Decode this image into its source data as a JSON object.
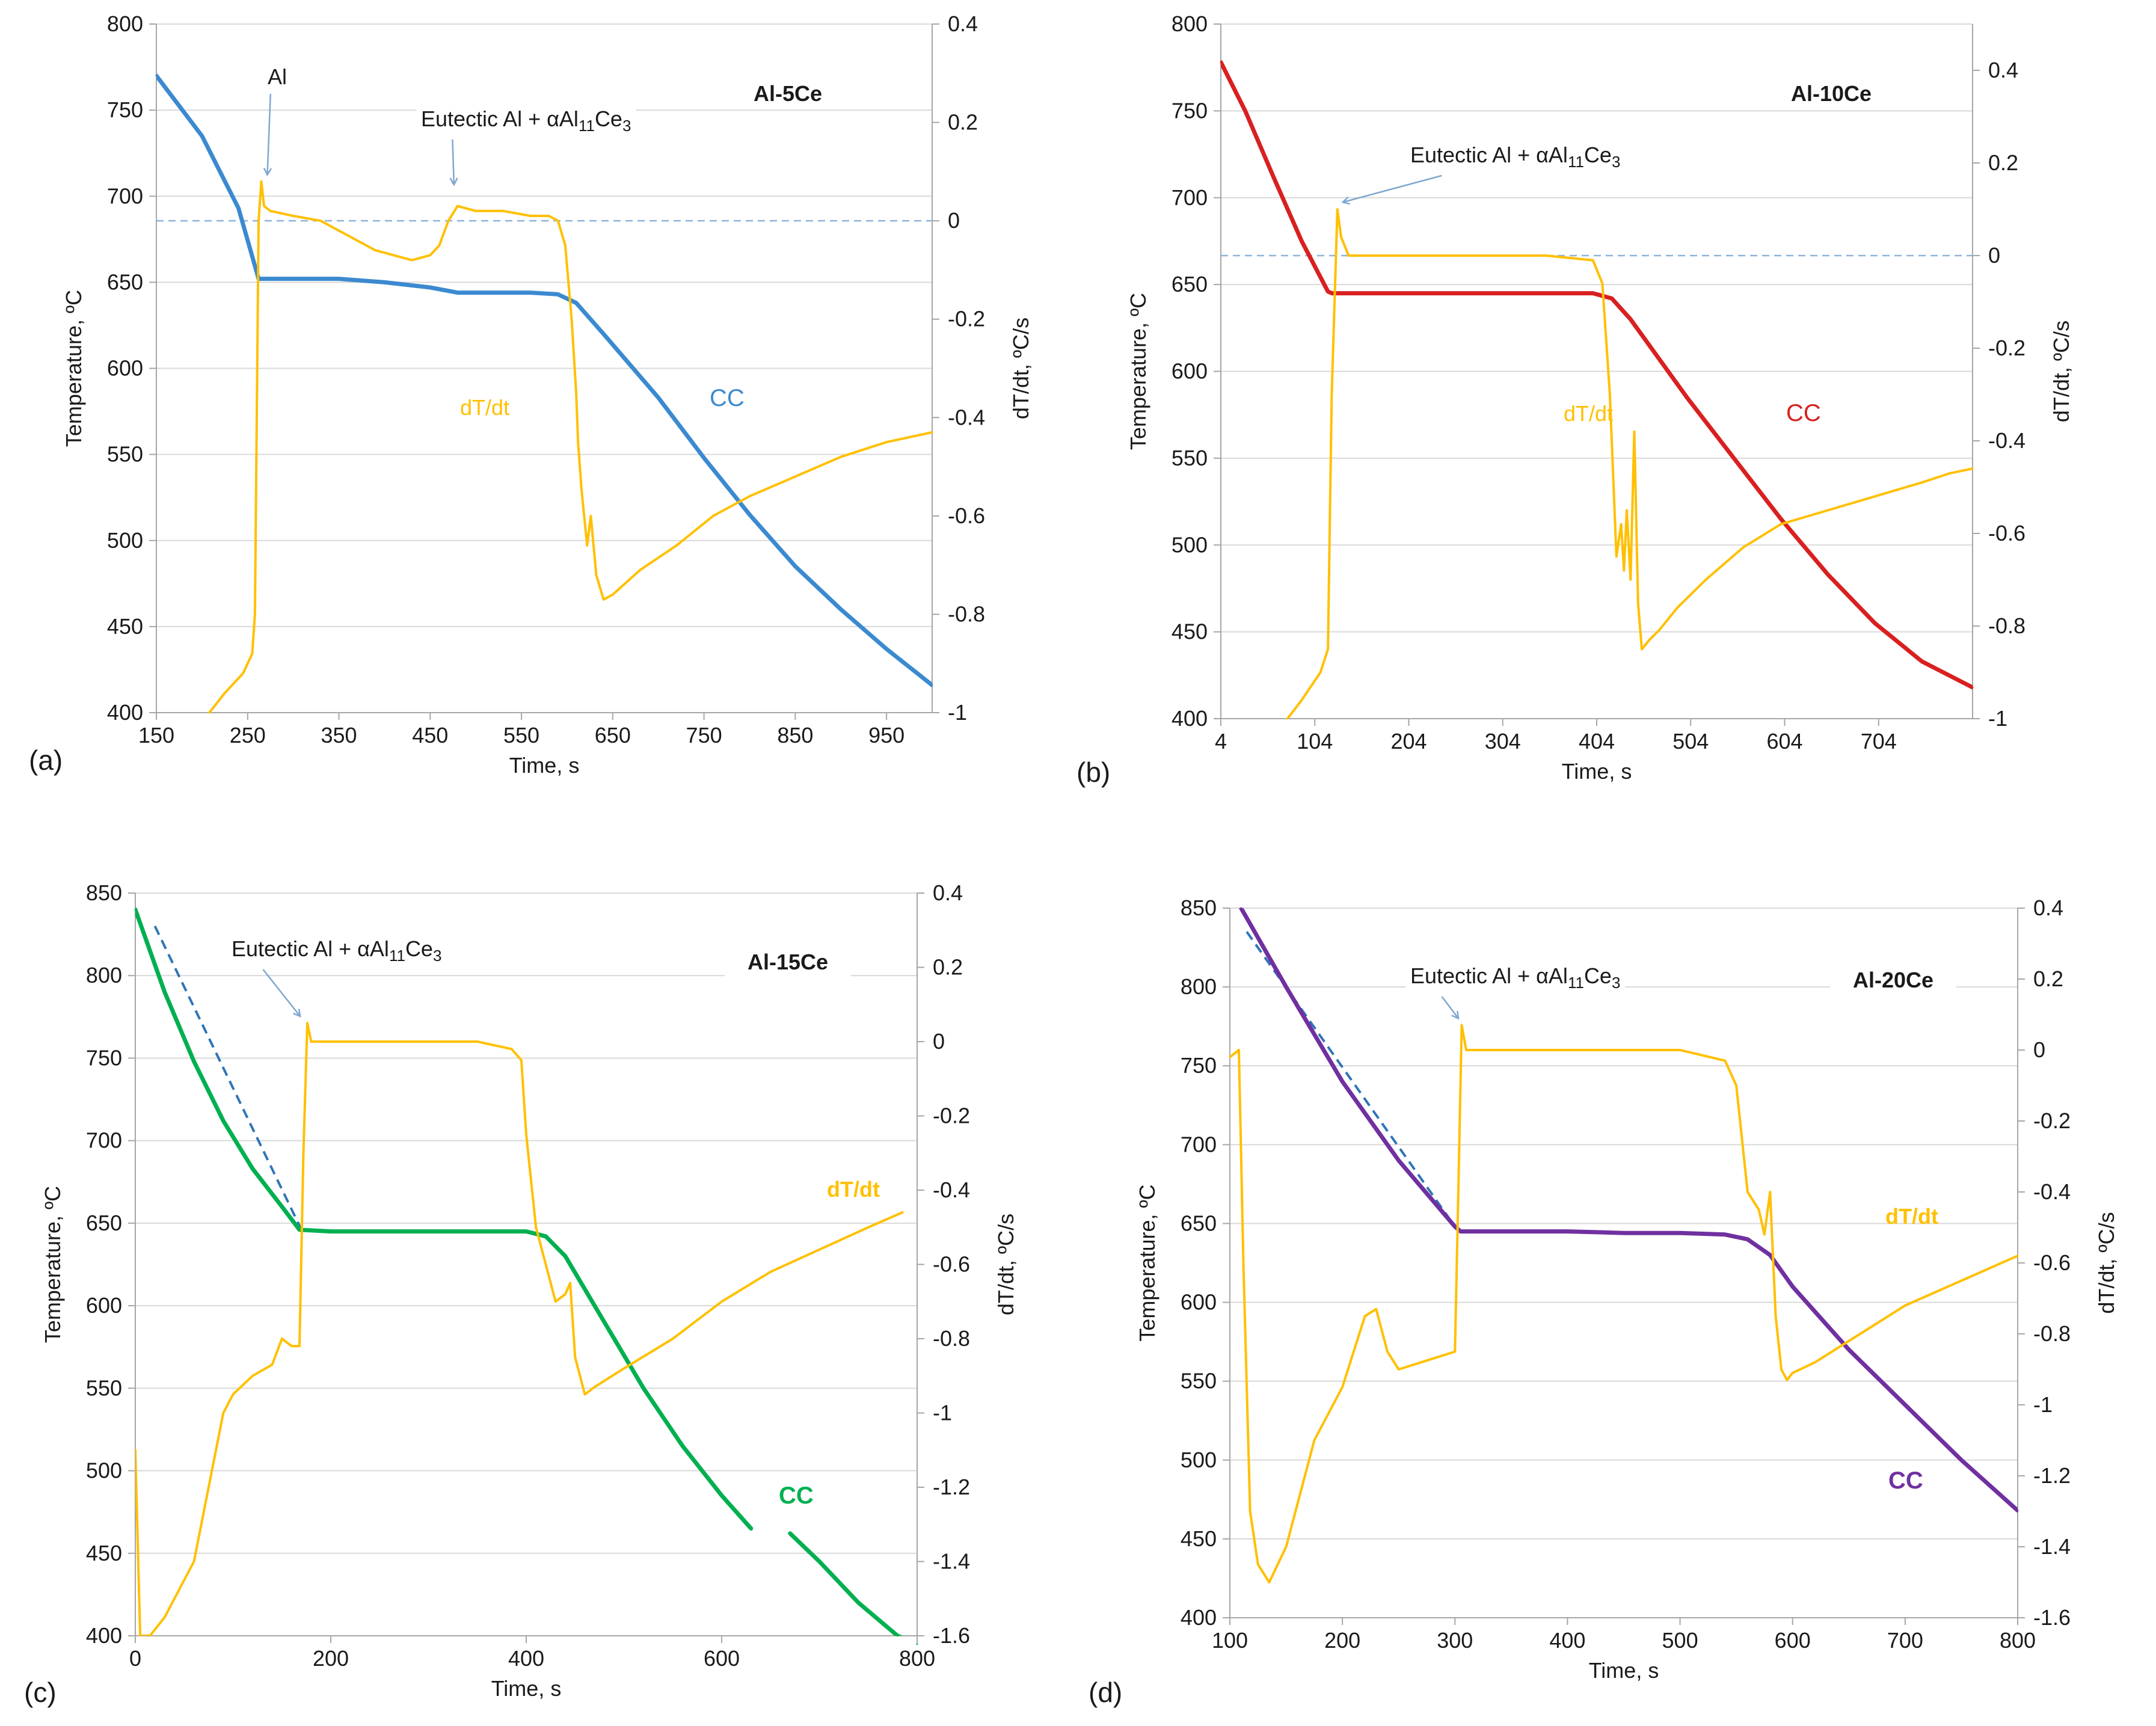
{
  "colors": {
    "dTdt": "#FFC000",
    "grid": "#D9D9D9",
    "axis": "#A6A6A6",
    "text": "#1A1A1A",
    "ref_line": "#8EB4D9",
    "arrow": "#7FA7CF",
    "tangent": "#2E75B6"
  },
  "chart_data": [
    {
      "type": "line",
      "panel_label": "(a)",
      "alloy_label": "Al-5Ce",
      "xlabel": "Time, s",
      "ylabel": "Temperature, ºC",
      "y2label": "dT/dt, ºC/s",
      "xlim": [
        150,
        1000
      ],
      "x_ticks": [
        "150",
        "250",
        "350",
        "450",
        "550",
        "650",
        "750",
        "850",
        "950"
      ],
      "ylim": [
        400,
        800
      ],
      "y_ticks": [
        "400",
        "450",
        "500",
        "550",
        "600",
        "650",
        "700",
        "750",
        "800"
      ],
      "y2lim": [
        -1,
        0.4
      ],
      "y2_ticks": [
        "-1",
        "-0.8",
        "-0.6",
        "-0.4",
        "-0.2",
        "0",
        "0.2",
        "0.4"
      ],
      "grid": "horizontal",
      "cc_color": "#3B8AD0",
      "series": [
        {
          "name": "CC",
          "axis": "left",
          "x": [
            150,
            200,
            240,
            262,
            300,
            350,
            400,
            450,
            480,
            520,
            560,
            590,
            610,
            640,
            700,
            750,
            800,
            850,
            900,
            950,
            1000
          ],
          "y": [
            770,
            735,
            693,
            652,
            652,
            652,
            650,
            647,
            644,
            644,
            644,
            643,
            638,
            620,
            583,
            548,
            515,
            485,
            460,
            437,
            416
          ]
        },
        {
          "name": "dT/dt",
          "axis": "right",
          "x": [
            208,
            225,
            245,
            255,
            258,
            262,
            265,
            268,
            275,
            300,
            330,
            350,
            370,
            390,
            410,
            430,
            450,
            460,
            470,
            480,
            500,
            530,
            560,
            580,
            590,
            598,
            605,
            610,
            612,
            616,
            622,
            626,
            632,
            640,
            650,
            680,
            720,
            760,
            800,
            850,
            900,
            950,
            1000
          ],
          "y": [
            -1,
            -0.96,
            -0.92,
            -0.88,
            -0.8,
            0,
            0.08,
            0.03,
            0.02,
            0.01,
            0.0,
            -0.02,
            -0.04,
            -0.06,
            -0.07,
            -0.08,
            -0.07,
            -0.05,
            0.0,
            0.03,
            0.02,
            0.02,
            0.01,
            0.01,
            0.0,
            -0.05,
            -0.2,
            -0.35,
            -0.45,
            -0.55,
            -0.66,
            -0.6,
            -0.72,
            -0.77,
            -0.76,
            -0.71,
            -0.66,
            -0.6,
            -0.56,
            -0.52,
            -0.48,
            -0.45,
            -0.43
          ]
        }
      ],
      "reference_line": {
        "axis": "right",
        "y": 0
      },
      "annotations": [
        {
          "text": "Al",
          "target": [
            265,
            0.08
          ]
        },
        {
          "text": "Eutectic Al + αAl",
          "sub": "11",
          "text2": "Ce",
          "sub2": "3",
          "target": [
            480,
            0.06
          ]
        },
        {
          "text": "dT/dt",
          "at": [
            395,
            0.0
          ]
        },
        {
          "text": "CC",
          "at": [
            760,
            0.0
          ]
        }
      ]
    },
    {
      "type": "line",
      "panel_label": "(b)",
      "alloy_label": "Al-10Ce",
      "xlabel": "Time, s",
      "ylabel": "Temperature, ºC",
      "y2label": "dT/dt, ºC/s",
      "xlim": [
        4,
        804
      ],
      "x_ticks": [
        "4",
        "104",
        "204",
        "304",
        "404",
        "504",
        "604",
        "704"
      ],
      "ylim": [
        400,
        800
      ],
      "y_ticks": [
        "400",
        "450",
        "500",
        "550",
        "600",
        "650",
        "700",
        "750",
        "800"
      ],
      "y2lim": [
        -1,
        0.5
      ],
      "y2_ticks": [
        "-1",
        "-0.8",
        "-0.6",
        "-0.4",
        "-0.2",
        "0",
        "0.2",
        "0.4"
      ],
      "grid": "horizontal",
      "cc_color": "#D92020",
      "series": [
        {
          "name": "CC",
          "axis": "left",
          "x": [
            4,
            30,
            60,
            90,
            118,
            122,
            150,
            200,
            300,
            400,
            420,
            440,
            460,
            500,
            550,
            600,
            650,
            700,
            750,
            804
          ],
          "y": [
            778,
            750,
            712,
            675,
            646,
            645,
            645,
            645,
            645,
            645,
            642,
            630,
            615,
            585,
            550,
            515,
            483,
            455,
            433,
            418
          ]
        },
        {
          "name": "dT/dt",
          "axis": "right",
          "x": [
            75,
            90,
            110,
            118,
            122,
            128,
            132,
            140,
            160,
            200,
            250,
            300,
            350,
            400,
            410,
            418,
            425,
            430,
            433,
            436,
            440,
            444,
            448,
            452,
            456,
            460,
            465,
            470,
            490,
            520,
            560,
            600,
            650,
            700,
            750,
            780,
            804
          ],
          "y": [
            -1,
            -0.96,
            -0.9,
            -0.85,
            -0.3,
            0.1,
            0.04,
            0.0,
            0.0,
            0.0,
            0.0,
            0.0,
            0.0,
            -0.01,
            -0.06,
            -0.3,
            -0.65,
            -0.58,
            -0.68,
            -0.55,
            -0.7,
            -0.38,
            -0.75,
            -0.85,
            -0.84,
            -0.83,
            -0.82,
            -0.81,
            -0.76,
            -0.7,
            -0.63,
            -0.58,
            -0.55,
            -0.52,
            -0.49,
            -0.47,
            -0.46
          ]
        }
      ],
      "reference_line": {
        "axis": "right",
        "y": 0
      },
      "annotations": [
        {
          "text": "Eutectic Al + αAl",
          "sub": "11",
          "text2": "Ce",
          "sub2": "3",
          "target": [
            128,
            0.1
          ]
        },
        {
          "text": "dT/dt",
          "at": [
            340,
            0.0
          ]
        },
        {
          "text": "CC",
          "at": [
            585,
            0.0
          ]
        }
      ]
    },
    {
      "type": "line",
      "panel_label": "(c)",
      "alloy_label": "Al-15Ce",
      "xlabel": "Time, s",
      "ylabel": "Temperature, ºC",
      "y2label": "dT/dt, ºC/s",
      "xlim": [
        0,
        800
      ],
      "x_ticks": [
        "0",
        "200",
        "400",
        "600",
        "800"
      ],
      "ylim": [
        400,
        850
      ],
      "y_ticks": [
        "400",
        "450",
        "500",
        "550",
        "600",
        "650",
        "700",
        "750",
        "800",
        "850"
      ],
      "y2lim": [
        -1.6,
        0.4
      ],
      "y2_ticks": [
        "-1.6",
        "-1.4",
        "-1.2",
        "-1",
        "-0.8",
        "-0.6",
        "-0.4",
        "-0.2",
        "0",
        "0.2",
        "0.4"
      ],
      "grid": "horizontal",
      "cc_color": "#00B050",
      "series": [
        {
          "name": "CC",
          "axis": "left",
          "x": [
            0,
            30,
            60,
            90,
            120,
            150,
            168,
            200,
            300,
            400,
            420,
            440,
            480,
            520,
            560,
            600,
            630
          ],
          "y": [
            840,
            790,
            748,
            712,
            683,
            660,
            646,
            645,
            645,
            645,
            642,
            630,
            590,
            550,
            515,
            485,
            465
          ]
        },
        {
          "name": "CC",
          "axis": "left",
          "break_before": true,
          "x": [
            670,
            700,
            740,
            780,
            800
          ],
          "y": [
            462,
            445,
            420,
            400,
            395
          ]
        },
        {
          "name": "dT/dt",
          "axis": "right",
          "x": [
            0,
            5,
            15,
            30,
            60,
            90,
            100,
            120,
            140,
            150,
            160,
            168,
            172,
            176,
            180,
            200,
            250,
            300,
            350,
            385,
            395,
            400,
            410,
            420,
            430,
            440,
            445,
            450,
            460,
            470,
            500,
            550,
            600,
            650,
            700,
            750,
            785
          ],
          "y": [
            -1.1,
            -1.6,
            -1.6,
            -1.55,
            -1.4,
            -1.0,
            -0.95,
            -0.9,
            -0.87,
            -0.8,
            -0.82,
            -0.82,
            -0.3,
            0.05,
            0.0,
            0.0,
            0.0,
            0.0,
            0.0,
            -0.02,
            -0.05,
            -0.25,
            -0.5,
            -0.6,
            -0.7,
            -0.68,
            -0.65,
            -0.85,
            -0.95,
            -0.93,
            -0.88,
            -0.8,
            -0.7,
            -0.62,
            -0.56,
            -0.5,
            -0.46
          ]
        }
      ],
      "tangent_line": {
        "axis": "left",
        "x": [
          20,
          170
        ],
        "y": [
          830,
          646
        ]
      },
      "annotations": [
        {
          "text": "Eutectic Al + αAl",
          "sub": "11",
          "text2": "Ce",
          "sub2": "3",
          "target": [
            172,
            0.05
          ]
        },
        {
          "text": "dT/dt",
          "at": [
            720,
            0.0
          ]
        },
        {
          "text": "CC",
          "at": [
            660,
            0.0
          ]
        }
      ]
    },
    {
      "type": "line",
      "panel_label": "(d)",
      "alloy_label": "Al-20Ce",
      "xlabel": "Time, s",
      "ylabel": "Temperature, ºC",
      "y2label": "dT/dt, ºC/s",
      "xlim": [
        100,
        800
      ],
      "x_ticks": [
        "100",
        "200",
        "300",
        "400",
        "500",
        "600",
        "700",
        "800"
      ],
      "ylim": [
        400,
        850
      ],
      "y_ticks": [
        "400",
        "450",
        "500",
        "550",
        "600",
        "650",
        "700",
        "750",
        "800",
        "850"
      ],
      "y2lim": [
        -1.6,
        0.4
      ],
      "y2_ticks": [
        "-1.6",
        "-1.4",
        "-1.2",
        "-1",
        "-0.8",
        "-0.6",
        "-0.4",
        "-0.2",
        "0",
        "0.2",
        "0.4"
      ],
      "grid": "horizontal",
      "cc_color": "#7030A0",
      "series": [
        {
          "name": "CC",
          "axis": "left",
          "x": [
            110,
            150,
            200,
            250,
            300,
            305,
            350,
            400,
            450,
            500,
            540,
            560,
            580,
            600,
            650,
            700,
            750,
            800
          ],
          "y": [
            850,
            800,
            740,
            690,
            648,
            645,
            645,
            645,
            644,
            644,
            643,
            640,
            630,
            610,
            570,
            535,
            500,
            468
          ]
        },
        {
          "name": "dT/dt",
          "axis": "right",
          "x": [
            100,
            108,
            112,
            118,
            125,
            135,
            150,
            175,
            200,
            220,
            230,
            240,
            250,
            280,
            300,
            303,
            306,
            310,
            320,
            350,
            400,
            450,
            500,
            540,
            550,
            555,
            560,
            570,
            575,
            580,
            585,
            590,
            595,
            600,
            620,
            660,
            700,
            750,
            800
          ],
          "y": [
            -0.02,
            0.0,
            -0.6,
            -1.3,
            -1.45,
            -1.5,
            -1.4,
            -1.1,
            -0.95,
            -0.75,
            -0.73,
            -0.85,
            -0.9,
            -0.87,
            -0.85,
            -0.4,
            0.07,
            0.0,
            0.0,
            0.0,
            0.0,
            0.0,
            0.0,
            -0.03,
            -0.1,
            -0.25,
            -0.4,
            -0.45,
            -0.52,
            -0.4,
            -0.75,
            -0.9,
            -0.93,
            -0.91,
            -0.88,
            -0.8,
            -0.72,
            -0.65,
            -0.58
          ]
        }
      ],
      "tangent_line": {
        "axis": "left",
        "x": [
          115,
          302
        ],
        "y": [
          835,
          646
        ]
      },
      "annotations": [
        {
          "text": "Eutectic Al + αAl",
          "sub": "11",
          "text2": "Ce",
          "sub2": "3",
          "target": [
            306,
            0.07
          ]
        },
        {
          "text": "dT/dt",
          "at": [
            720,
            0.0
          ]
        },
        {
          "text": "CC",
          "at": [
            720,
            0.0
          ]
        }
      ]
    }
  ]
}
